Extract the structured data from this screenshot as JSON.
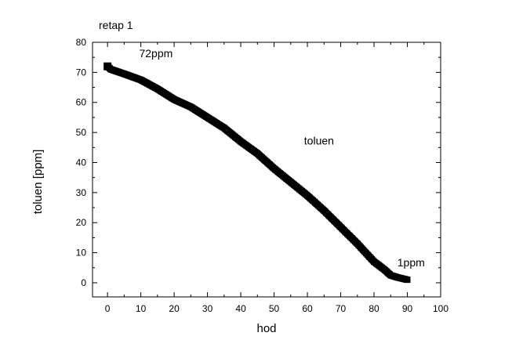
{
  "chart_data": {
    "type": "scatter",
    "title": "retap 1",
    "xlabel": "hod",
    "ylabel": "toluen [ppm]",
    "xlim": [
      -4.5,
      100
    ],
    "ylim": [
      -4.7,
      80
    ],
    "xticks": [
      0,
      10,
      20,
      30,
      40,
      50,
      60,
      70,
      80,
      90,
      100
    ],
    "yticks": [
      0,
      10,
      20,
      30,
      40,
      50,
      60,
      70,
      80
    ],
    "grid": false,
    "series": [
      {
        "name": "toluen",
        "color": "#000000",
        "marker": "square",
        "x": [
          0,
          1,
          5,
          10,
          15,
          20,
          25,
          30,
          35,
          40,
          45,
          50,
          55,
          60,
          65,
          70,
          75,
          80,
          83,
          85,
          87,
          90
        ],
        "y": [
          72,
          71,
          69.5,
          67.5,
          64.5,
          61,
          58.5,
          55,
          51.5,
          47,
          43,
          38,
          33.5,
          29,
          24,
          18.5,
          13,
          7,
          4.5,
          2.5,
          1.8,
          1
        ]
      }
    ],
    "annotations": [
      {
        "text": "72ppm",
        "x": 9.5,
        "y": 75
      },
      {
        "text": "toluen",
        "x": 59,
        "y": 46
      },
      {
        "text": "1ppm",
        "x": 87,
        "y": 5.5
      }
    ]
  }
}
